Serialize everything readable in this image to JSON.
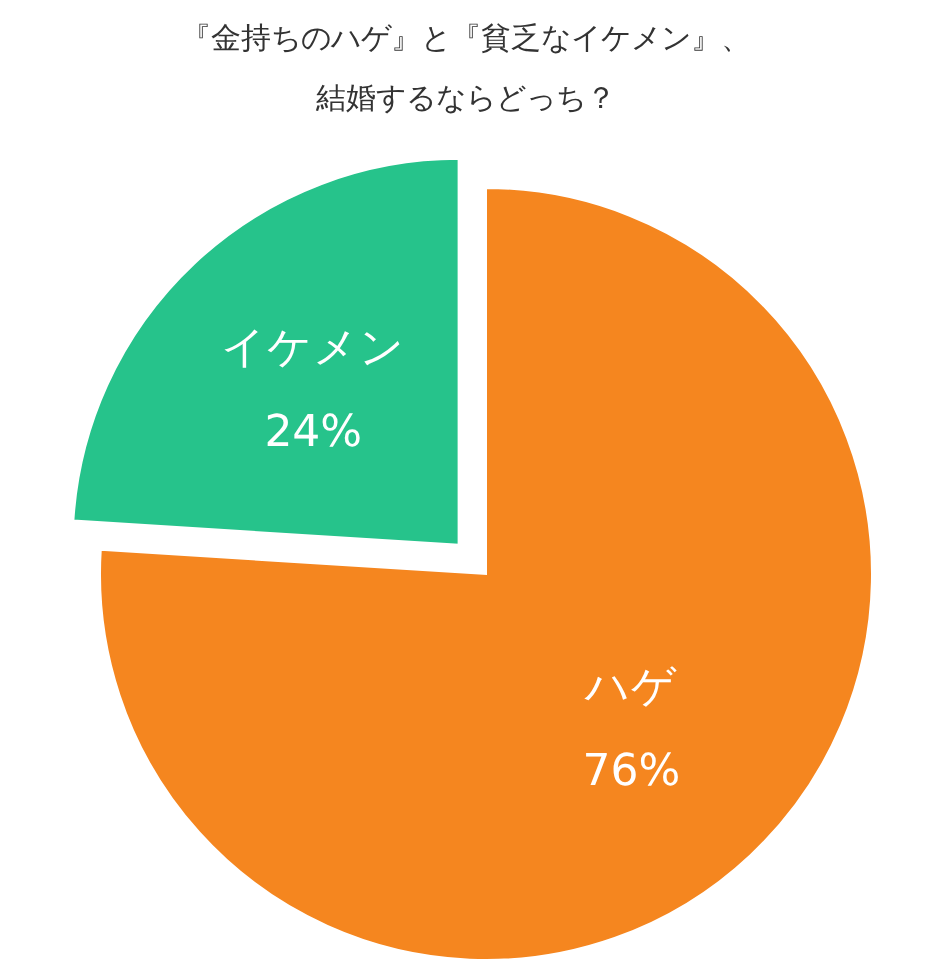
{
  "chart_data": {
    "type": "pie",
    "title": "『金持ちのハゲ』と『貧乏なイケメン』、",
    "subtitle": "結婚するならどっち？",
    "categories": [
      "ハゲ",
      "イケメン"
    ],
    "values": [
      76,
      24
    ],
    "colors": [
      "#f5861f",
      "#26c38b"
    ],
    "value_labels": [
      "76%",
      "24%"
    ]
  }
}
